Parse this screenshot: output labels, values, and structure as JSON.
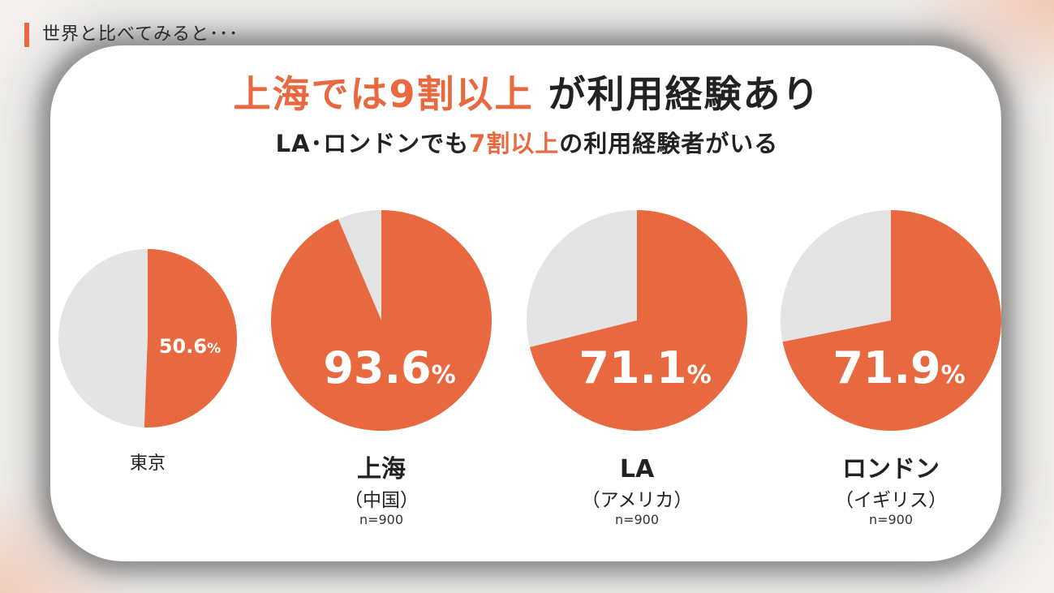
{
  "header": {
    "text": "世界と比べてみると･･･"
  },
  "title": {
    "highlight": "上海では9割以上",
    "rest": "が利用経験あり"
  },
  "subtitle": {
    "pre": "LA･ロンドンでも",
    "highlight": "7割以上",
    "post": "の利用経験者がいる"
  },
  "colors": {
    "accent": "#e8693f",
    "remainder": "#e4e4e4"
  },
  "chart_data": {
    "type": "pie",
    "title": "上海では9割以上 が利用経験あり",
    "pies": [
      {
        "city": "東京",
        "sub": "",
        "n": "",
        "value": 50.6,
        "label": "50.6",
        "unit": "%"
      },
      {
        "city": "上海",
        "sub": "（中国）",
        "n": "n=900",
        "value": 93.6,
        "label": "93.6",
        "unit": "%"
      },
      {
        "city": "LA",
        "sub": "（アメリカ）",
        "n": "n=900",
        "value": 71.1,
        "label": "71.1",
        "unit": "%"
      },
      {
        "city": "ロンドン",
        "sub": "（イギリス）",
        "n": "n=900",
        "value": 71.9,
        "label": "71.9",
        "unit": "%"
      }
    ]
  }
}
